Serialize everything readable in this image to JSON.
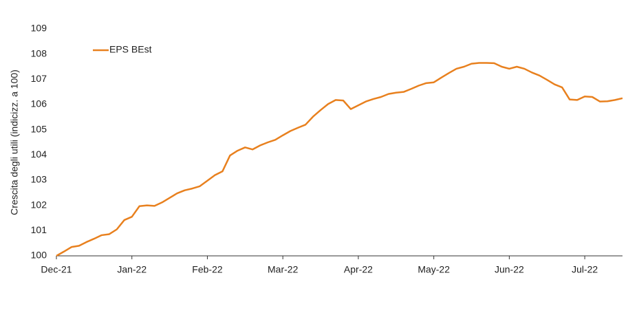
{
  "chart_data": {
    "type": "line",
    "y_label": "Crescita degli utili (indicizz. a 100)",
    "categories": [
      "Dec-21",
      null,
      null,
      null,
      null,
      null,
      null,
      null,
      null,
      null,
      "Jan-22",
      null,
      null,
      null,
      null,
      null,
      null,
      null,
      null,
      null,
      "Feb-22",
      null,
      null,
      null,
      null,
      null,
      null,
      null,
      null,
      null,
      "Mar-22",
      null,
      null,
      null,
      null,
      null,
      null,
      null,
      null,
      null,
      "Apr-22",
      null,
      null,
      null,
      null,
      null,
      null,
      null,
      null,
      null,
      "May-22",
      null,
      null,
      null,
      null,
      null,
      null,
      null,
      null,
      null,
      "Jun-22",
      null,
      null,
      null,
      null,
      null,
      null,
      null,
      null,
      null,
      "Jul-22",
      null,
      null,
      null,
      null,
      null
    ],
    "series": [
      {
        "name": "EPS BEst",
        "color": "#e8801e",
        "values": [
          100,
          100.17,
          100.35,
          100.4,
          100.55,
          100.68,
          100.82,
          100.86,
          101.05,
          101.42,
          101.55,
          101.97,
          102.0,
          101.98,
          102.12,
          102.3,
          102.48,
          102.6,
          102.67,
          102.76,
          102.98,
          103.2,
          103.35,
          103.98,
          104.17,
          104.3,
          104.22,
          104.38,
          104.5,
          104.6,
          104.78,
          104.95,
          105.08,
          105.2,
          105.52,
          105.78,
          106.02,
          106.18,
          106.16,
          105.82,
          105.97,
          106.12,
          106.22,
          106.3,
          106.42,
          106.47,
          106.5,
          106.62,
          106.75,
          106.85,
          106.88,
          107.07,
          107.25,
          107.42,
          107.5,
          107.62,
          107.65,
          107.65,
          107.64,
          107.5,
          107.42,
          107.5,
          107.42,
          107.27,
          107.15,
          106.98,
          106.8,
          106.68,
          106.2,
          106.18,
          106.32,
          106.3,
          106.12,
          106.13,
          106.18,
          106.25
        ]
      }
    ],
    "ylim": [
      100,
      109
    ],
    "yticks": [
      100,
      101,
      102,
      103,
      104,
      105,
      106,
      107,
      108,
      109
    ],
    "grid": false,
    "legend": "upper left"
  }
}
